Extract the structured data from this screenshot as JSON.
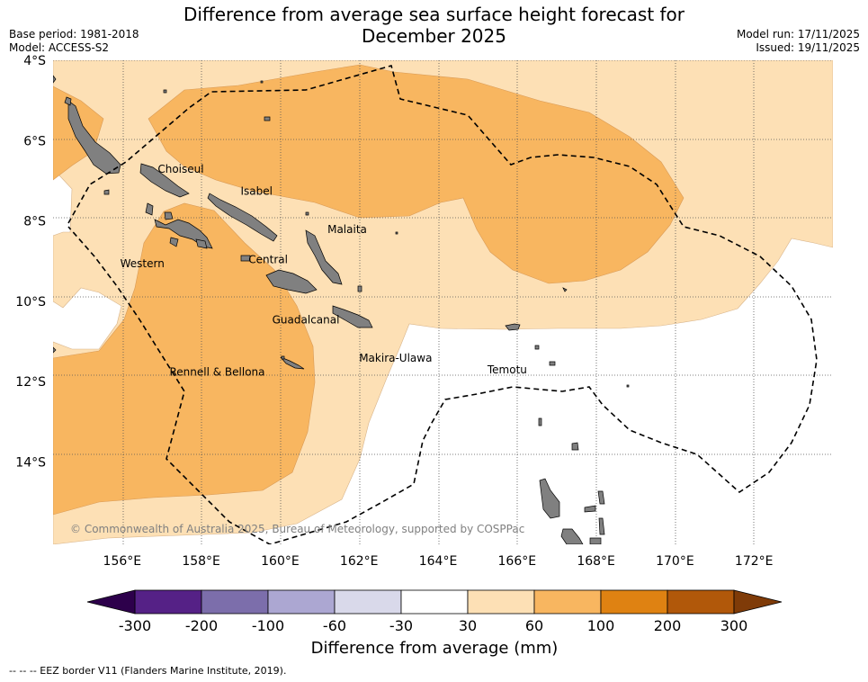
{
  "title": {
    "line1": "Difference from average sea surface height forecast for",
    "line2": "December 2025"
  },
  "meta_left": {
    "base_period": "Base period: 1981-2018",
    "model": "Model: ACCESS-S2"
  },
  "meta_right": {
    "model_run": "Model run: 17/11/2025",
    "issued": "Issued: 19/11/2025"
  },
  "map": {
    "extent": {
      "lon_min": 154.25,
      "lon_max": 174.0,
      "lat_min": -16.05,
      "lat_max": -4.0
    },
    "lat_labels": [
      {
        "value": -4,
        "label": "4°S"
      },
      {
        "value": -6,
        "label": "6°S"
      },
      {
        "value": -8,
        "label": "8°S"
      },
      {
        "value": -10,
        "label": "10°S"
      },
      {
        "value": -12,
        "label": "12°S"
      },
      {
        "value": -14,
        "label": "14°S"
      }
    ],
    "lon_labels": [
      {
        "value": 156,
        "label": "156°E"
      },
      {
        "value": 158,
        "label": "158°E"
      },
      {
        "value": 160,
        "label": "160°E"
      },
      {
        "value": 162,
        "label": "162°E"
      },
      {
        "value": 164,
        "label": "164°E"
      },
      {
        "value": 166,
        "label": "166°E"
      },
      {
        "value": 168,
        "label": "168°E"
      },
      {
        "value": 170,
        "label": "170°E"
      },
      {
        "value": 172,
        "label": "172°E"
      }
    ],
    "provinces": [
      {
        "name": "Choiseul",
        "lon": 156.9,
        "lat": -6.8
      },
      {
        "name": "Isabel",
        "lon": 159.0,
        "lat": -7.35
      },
      {
        "name": "Malaita",
        "lon": 161.2,
        "lat": -8.3
      },
      {
        "name": "Western",
        "lon": 155.95,
        "lat": -9.15
      },
      {
        "name": "Central",
        "lon": 159.2,
        "lat": -9.05
      },
      {
        "name": "Guadalcanal",
        "lon": 159.8,
        "lat": -10.55
      },
      {
        "name": "Makira-Ulawa",
        "lon": 162.0,
        "lat": -11.5
      },
      {
        "name": "Rennell & Bellona",
        "lon": 157.2,
        "lat": -11.85
      },
      {
        "name": "Temotu",
        "lon": 165.25,
        "lat": -11.8
      }
    ],
    "copyright": "© Commonwealth of Australia 2025, Bureau of Meteorology, supported by COSPPac",
    "colors": {
      "land": "#808080",
      "c30_60": "#fde0b5",
      "c60_100": "#f8b660",
      "neutral": "#ffffff"
    }
  },
  "colorbar": {
    "label": "Difference from average (mm)",
    "ticks": [
      "-300",
      "-200",
      "-100",
      "-60",
      "-30",
      "30",
      "60",
      "100",
      "200",
      "300"
    ],
    "colors": [
      "#552186",
      "#7c6eab",
      "#aca7d2",
      "#d9d9ea",
      "#ffffff",
      "#fde0b5",
      "#f8b660",
      "#df8212",
      "#b1580a"
    ],
    "extend_low": "#2d004b",
    "extend_high": "#7f3b08"
  },
  "footnote": "--  --  -- EEZ border V11 (Flanders Marine Institute, 2019)."
}
